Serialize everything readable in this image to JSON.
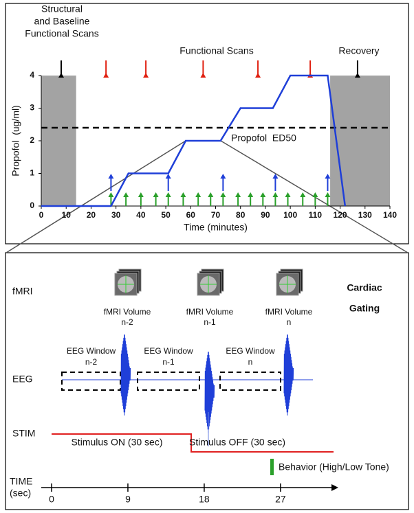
{
  "chart_data": {
    "type": "line",
    "x_label": "Time (minutes)",
    "y_label": "Propofol  (ug/ml)",
    "x": [
      0,
      28,
      35,
      51,
      58,
      72,
      80,
      93,
      100,
      115,
      122
    ],
    "values": [
      0,
      0,
      1,
      1,
      2,
      2,
      3,
      3,
      4,
      4,
      0
    ],
    "color": "#1f3fd8",
    "xlim": [
      0,
      140
    ],
    "ylim": [
      0,
      4
    ],
    "xticks": [
      0,
      10,
      20,
      30,
      40,
      50,
      60,
      70,
      80,
      90,
      100,
      110,
      120,
      130,
      140
    ],
    "yticks": [
      0,
      1,
      2,
      3,
      4
    ],
    "reference_line": {
      "value": 2.4,
      "label": "Propofol  ED50"
    },
    "shaded_regions": [
      [
        0,
        14
      ],
      [
        116,
        140
      ]
    ],
    "shade_color": "#a3a3a3",
    "annotations": [
      [
        "Structural",
        "and Baseline",
        "Functional Scans"
      ],
      [
        "Functional Scans"
      ],
      [
        "Recovery"
      ]
    ],
    "black_arrows": [
      8,
      127
    ],
    "red_arrows": [
      26,
      42,
      65,
      87,
      108
    ],
    "blue_arrows": [
      28,
      51,
      73,
      94,
      115
    ],
    "green_arrows": [
      28,
      34,
      40,
      46,
      51,
      57,
      63,
      68,
      73,
      79,
      84,
      89,
      94,
      99,
      105,
      110,
      115
    ]
  },
  "diagram": {
    "title": [
      "Cardiac",
      "Gating"
    ],
    "rows": [
      "fMRI",
      "EEG",
      "STIM"
    ],
    "volumes": [
      [
        "fMRI Volume",
        "n-2"
      ],
      [
        "fMRI Volume",
        "n-1"
      ],
      [
        "fMRI Volume",
        "n"
      ]
    ],
    "eeg_windows": [
      [
        "EEG Window",
        "n-2"
      ],
      [
        "EEG Window",
        "n-1"
      ],
      [
        "EEG Window",
        "n"
      ]
    ],
    "stimulus_on": "Stimulus ON (30 sec)",
    "stimulus_off": "Stimulus OFF (30 sec)",
    "behavior": "Behavior (High/Low Tone)",
    "time_label": [
      "TIME",
      "(sec)"
    ],
    "time_ticks": [
      0,
      9,
      18,
      27
    ]
  }
}
